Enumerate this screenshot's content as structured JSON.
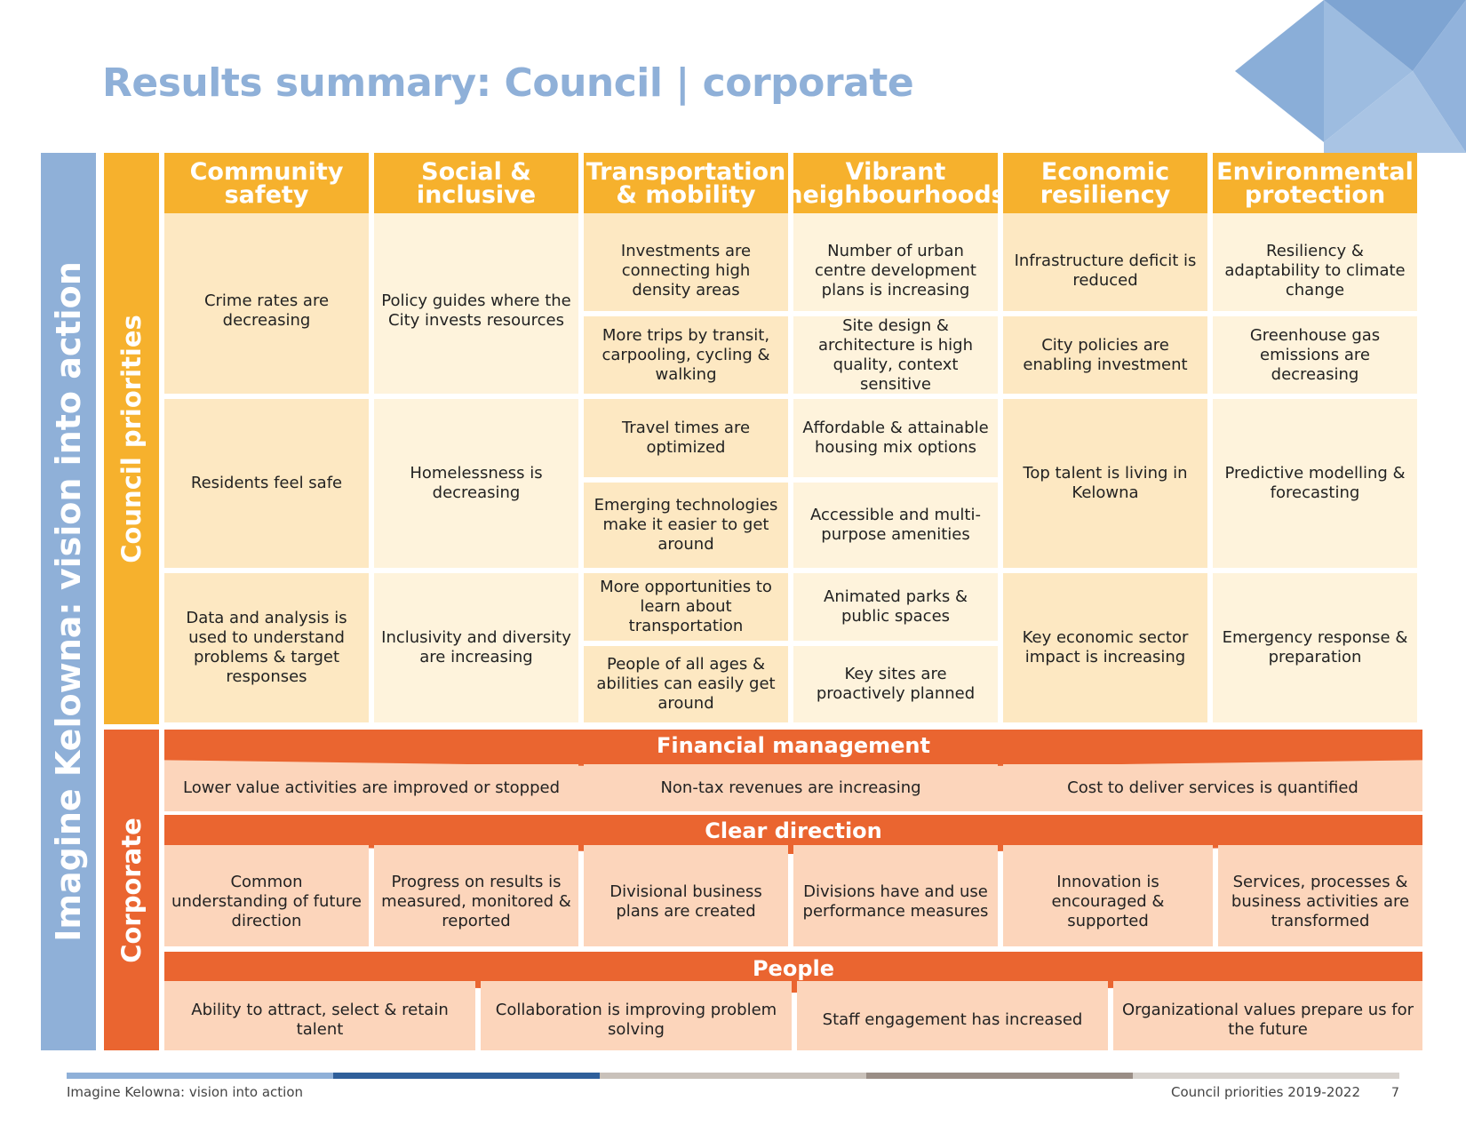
{
  "title": "Results summary: Council | corporate",
  "side_label": "Imagine Kelowna: vision into action",
  "council_label": "Council priorities",
  "corporate_label": "Corporate",
  "headers": [
    "Community safety",
    "Social & inclusive",
    "Transportation & mobility",
    "Vibrant neighbourhoods",
    "Economic resiliency",
    "Environmental protection"
  ],
  "council_cells": {
    "community": [
      "Crime rates are decreasing",
      "Residents feel safe",
      "Data and analysis is used to understand problems & target responses"
    ],
    "social": [
      "Policy guides where the City invests resources",
      "Homelessness is decreasing",
      "Inclusivity and diversity are increasing"
    ],
    "transport": [
      "Investments are connecting high density areas",
      "More trips by transit, carpooling, cycling & walking",
      "Travel times are optimized",
      "Emerging technologies make it easier to get around",
      "More opportunities to learn about transportation",
      "People of all ages & abilities can easily get around"
    ],
    "vibrant": [
      "Number of urban centre development plans is increasing",
      "Site design & architecture is high quality, context sensitive",
      "Affordable & attainable housing mix options",
      "Accessible and multi-purpose amenities",
      "Animated parks & public spaces",
      "Key sites are proactively planned"
    ],
    "economic": [
      "Infrastructure deficit is reduced",
      "City policies are enabling investment",
      "Top talent is living in Kelowna",
      "Key economic sector impact is increasing"
    ],
    "environment": [
      "Resiliency & adaptability to climate change",
      "Greenhouse gas emissions are decreasing",
      "Predictive modelling & forecasting",
      "Emergency response & preparation"
    ]
  },
  "financial": {
    "label": "Financial management",
    "items": [
      "Lower value activities are improved or stopped",
      "Non-tax revenues are increasing",
      "Cost to deliver services is quantified"
    ]
  },
  "direction": {
    "label": "Clear direction",
    "items": [
      "Common understanding of future direction",
      "Progress on results is measured, monitored & reported",
      "Divisional business plans are created",
      "Divisions have and use performance measures",
      "Innovation is encouraged & supported",
      "Services, processes & business activities are transformed"
    ]
  },
  "people": {
    "label": "People",
    "items": [
      "Ability to attract, select & retain talent",
      "Collaboration is improving problem solving",
      "Staff engagement has increased",
      "Organizational values prepare us for the future"
    ]
  },
  "footer": {
    "left": "Imagine Kelowna: vision into action",
    "right": "Council priorities 2019-2022",
    "page": "7"
  },
  "colors": {
    "title_blue": "#8fb0d8",
    "council_orange": "#f6b12d",
    "corporate_orange": "#ea6530"
  }
}
